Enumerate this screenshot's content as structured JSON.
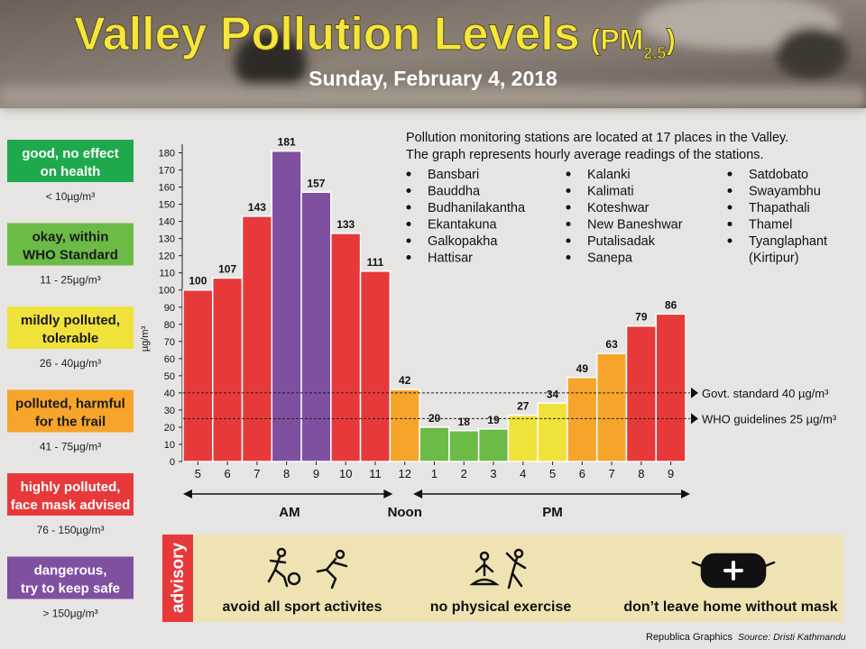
{
  "header": {
    "title": "Valley Pollution Levels",
    "pollutant_open": "(PM",
    "pollutant_sub": "2.5",
    "pollutant_close": ")",
    "date": "Sunday, February 4, 2018"
  },
  "levels": [
    {
      "label": [
        "good, no effect",
        "on health"
      ],
      "range": "< 10µg/m³",
      "color": "#1ea94d",
      "text_color": "#ffffff"
    },
    {
      "label": [
        "okay, within",
        "WHO Standard"
      ],
      "range": "11 - 25µg/m³",
      "color": "#6cbb47",
      "text_color": "#1a1a1a"
    },
    {
      "label": [
        "mildly polluted,",
        "tolerable"
      ],
      "range": "26 - 40µg/m³",
      "color": "#efe23a",
      "text_color": "#1a1a1a"
    },
    {
      "label": [
        "polluted, harmful",
        "for the frail"
      ],
      "range": "41 - 75µg/m³",
      "color": "#f7a42b",
      "text_color": "#1a1a1a"
    },
    {
      "label": [
        "highly polluted,",
        "face mask advised"
      ],
      "range": "76 - 150µg/m³",
      "color": "#e8393a",
      "text_color": "#ffffff"
    },
    {
      "label": [
        "dangerous,",
        "try to keep safe"
      ],
      "range": "> 150µg/m³",
      "color": "#7f4fa0",
      "text_color": "#ffffff"
    }
  ],
  "info": {
    "lines": [
      "Pollution monitoring stations are located at 17 places in the Valley.",
      "The graph represents hourly average readings of the stations."
    ],
    "stations": [
      [
        "Bansbari",
        "Bauddha",
        "Budhanilakantha",
        "Ekantakuna",
        "Galkopakha",
        "Hattisar"
      ],
      [
        "Kalanki",
        "Kalimati",
        "Koteshwar",
        "New Baneshwar",
        "Putalisadak",
        "Sanepa"
      ],
      [
        "Satdobato",
        "Swayambhu",
        "Thapathali",
        "Thamel",
        [
          "Tyanglaphant",
          "(Kirtipur)"
        ]
      ]
    ]
  },
  "chart_data": {
    "type": "bar",
    "y_label": "µg/m³",
    "categories": [
      "5",
      "6",
      "7",
      "8",
      "9",
      "10",
      "11",
      "12",
      "1",
      "2",
      "3",
      "4",
      "5",
      "6",
      "7",
      "8",
      "9"
    ],
    "values": [
      100,
      107,
      143,
      181,
      157,
      133,
      111,
      42,
      20,
      18,
      19,
      27,
      34,
      49,
      63,
      79,
      86
    ],
    "colors": [
      "#e8393a",
      "#e8393a",
      "#e8393a",
      "#7f4fa0",
      "#7f4fa0",
      "#e8393a",
      "#e8393a",
      "#f7a42b",
      "#6cbb47",
      "#6cbb47",
      "#6cbb47",
      "#efe23a",
      "#efe23a",
      "#f7a42b",
      "#f7a42b",
      "#e8393a",
      "#e8393a"
    ],
    "ylim": [
      0,
      185
    ],
    "yticks": [
      0,
      10,
      20,
      30,
      40,
      50,
      60,
      70,
      80,
      90,
      100,
      110,
      120,
      130,
      140,
      150,
      160,
      170,
      180
    ],
    "reference_lines": [
      {
        "value": 40,
        "label": "Govt. standard 40 µg/m³"
      },
      {
        "value": 25,
        "label": "WHO guidelines 25 µg/m³"
      }
    ],
    "periods": [
      "AM",
      "Noon",
      "PM"
    ]
  },
  "advisory": {
    "title": "advisory",
    "items": [
      "avoid all sport activites",
      "no physical exercise",
      "don’t leave home without mask"
    ]
  },
  "footer": {
    "credit": "Republica Graphics",
    "source": "Source: Dristi Kathmandu"
  }
}
